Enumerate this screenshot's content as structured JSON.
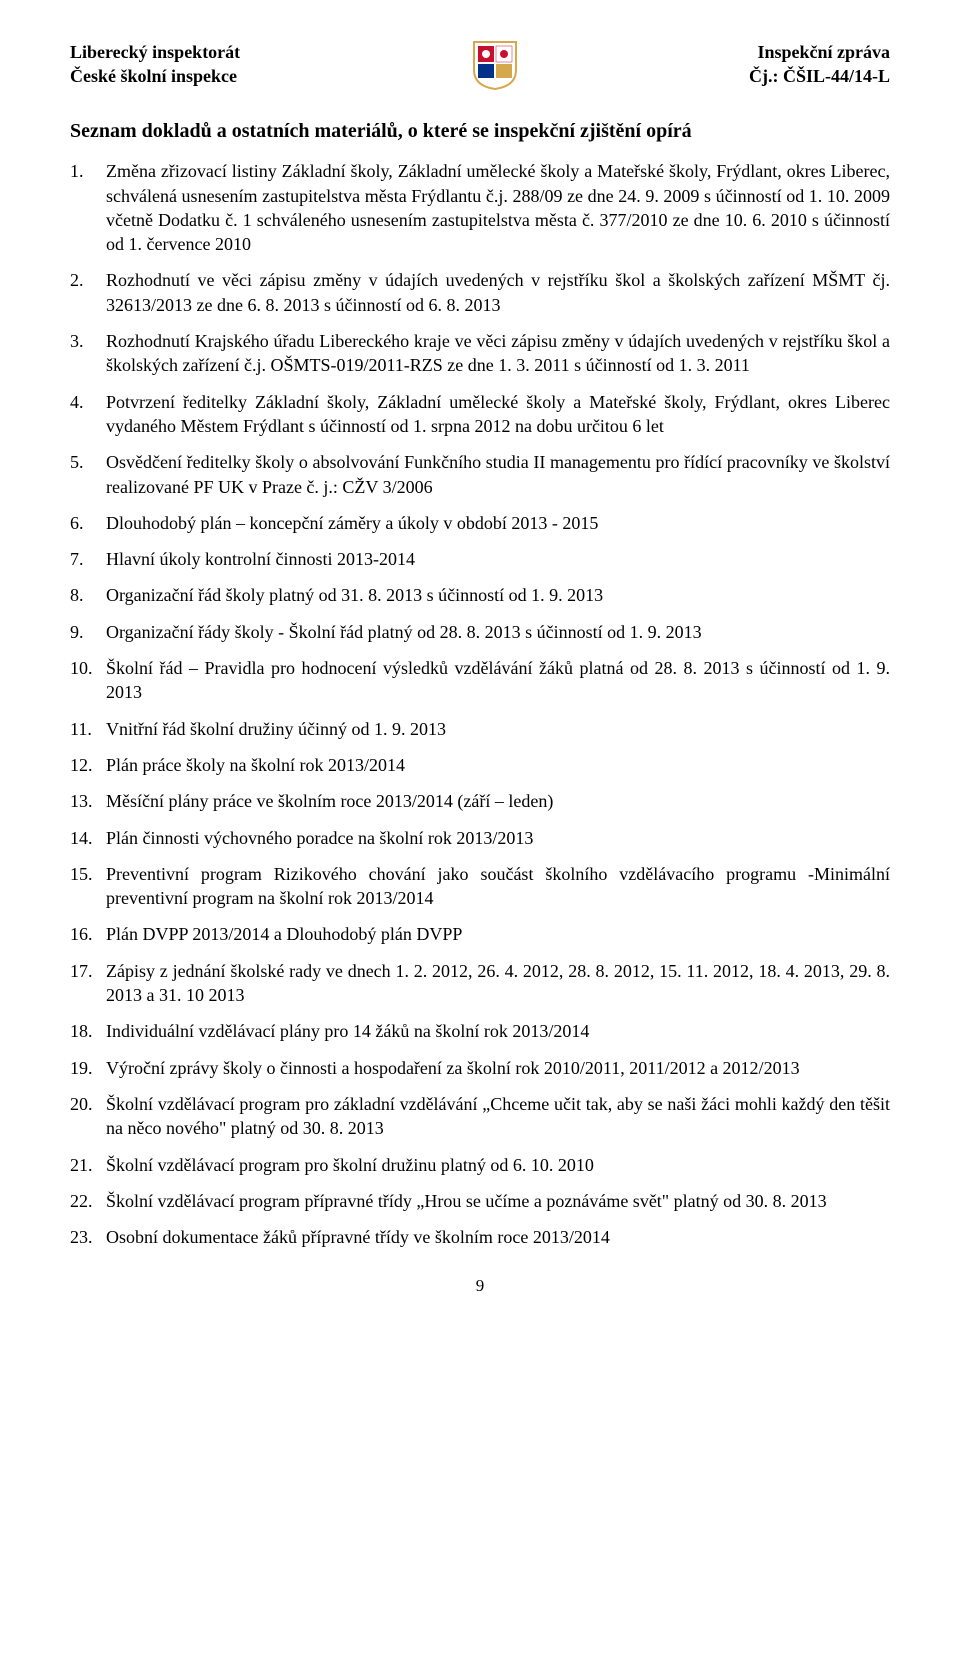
{
  "header": {
    "left_line1": "Liberecký inspektorát",
    "left_line2": "České školní inspekce",
    "right_line1": "Inspekční zpráva",
    "right_line2": "Čj.: ČŠIL-44/14-L"
  },
  "emblem_colors": {
    "red": "#c8102e",
    "white": "#ffffff",
    "blue": "#003087",
    "gold": "#d4a84b"
  },
  "section_title": "Seznam dokladů a ostatních materiálů, o které se inspekční zjištění opírá",
  "items": [
    {
      "n": "1.",
      "t": "Změna zřizovací listiny Základní školy, Základní umělecké školy a Mateřské školy, Frýdlant, okres Liberec, schválená usnesením zastupitelstva města Frýdlantu č.j. 288/09 ze dne 24. 9. 2009 s účinností od 1. 10. 2009 včetně Dodatku č. 1 schváleného usnesením zastupitelstva města č. 377/2010 ze dne 10. 6. 2010 s účinností od 1. července 2010"
    },
    {
      "n": "2.",
      "t": "Rozhodnutí ve věci zápisu změny v údajích uvedených v rejstříku škol a školských zařízení MŠMT čj. 32613/2013 ze dne 6. 8. 2013 s účinností od 6. 8. 2013"
    },
    {
      "n": "3.",
      "t": "Rozhodnutí Krajského úřadu Libereckého kraje ve věci zápisu změny v údajích uvedených v rejstříku škol a školských zařízení č.j. OŠMTS-019/2011-RZS ze dne 1. 3. 2011 s účinností od 1. 3. 2011"
    },
    {
      "n": "4.",
      "t": "Potvrzení ředitelky Základní školy, Základní umělecké školy a Mateřské školy, Frýdlant, okres Liberec vydaného Městem Frýdlant s účinností od 1. srpna 2012 na dobu určitou 6 let"
    },
    {
      "n": "5.",
      "t": "Osvědčení ředitelky školy o absolvování Funkčního studia II managementu pro řídící pracovníky ve školství realizované PF UK v Praze č. j.: CŽV 3/2006"
    },
    {
      "n": "6.",
      "t": "Dlouhodobý plán – koncepční záměry a úkoly v období 2013 - 2015"
    },
    {
      "n": "7.",
      "t": "Hlavní úkoly kontrolní činnosti 2013-2014"
    },
    {
      "n": "8.",
      "t": "Organizační řád školy platný od 31. 8. 2013 s účinností od 1. 9. 2013"
    },
    {
      "n": "9.",
      "t": "Organizační řády školy - Školní řád platný od 28. 8. 2013 s účinností od 1. 9. 2013"
    },
    {
      "n": "10.",
      "t": "Školní řád – Pravidla pro hodnocení výsledků vzdělávání žáků platná od 28. 8. 2013 s účinností od 1. 9. 2013"
    },
    {
      "n": "11.",
      "t": "Vnitřní řád školní družiny účinný od 1. 9. 2013"
    },
    {
      "n": "12.",
      "t": "Plán práce školy na školní rok 2013/2014"
    },
    {
      "n": "13.",
      "t": "Měsíční plány práce ve školním roce 2013/2014 (září – leden)"
    },
    {
      "n": "14.",
      "t": "Plán činnosti výchovného poradce na školní rok 2013/2013"
    },
    {
      "n": "15.",
      "t": "Preventivní program Rizikového chování jako součást školního vzdělávacího programu -Minimální preventivní program na školní rok 2013/2014"
    },
    {
      "n": "16.",
      "t": "Plán DVPP 2013/2014 a Dlouhodobý plán DVPP"
    },
    {
      "n": "17.",
      "t": "Zápisy z jednání školské rady ve dnech 1. 2. 2012, 26. 4. 2012, 28. 8. 2012, 15. 11. 2012, 18. 4. 2013, 29. 8. 2013 a 31. 10 2013"
    },
    {
      "n": "18.",
      "t": "Individuální vzdělávací plány pro 14 žáků na školní rok 2013/2014"
    },
    {
      "n": "19.",
      "t": "Výroční zprávy školy o činnosti a hospodaření za školní rok 2010/2011, 2011/2012 a 2012/2013"
    },
    {
      "n": "20.",
      "t": "Školní vzdělávací program pro základní vzdělávání „Chceme učit tak, aby se naši žáci mohli každý den těšit na něco nového\" platný od 30. 8. 2013"
    },
    {
      "n": "21.",
      "t": "Školní vzdělávací program pro školní družinu platný od 6. 10. 2010"
    },
    {
      "n": "22.",
      "t": "Školní vzdělávací program přípravné třídy „Hrou se učíme a poznáváme svět\" platný od 30. 8. 2013"
    },
    {
      "n": "23.",
      "t": "Osobní dokumentace žáků přípravné třídy ve školním roce 2013/2014"
    }
  ],
  "page_number": "9"
}
